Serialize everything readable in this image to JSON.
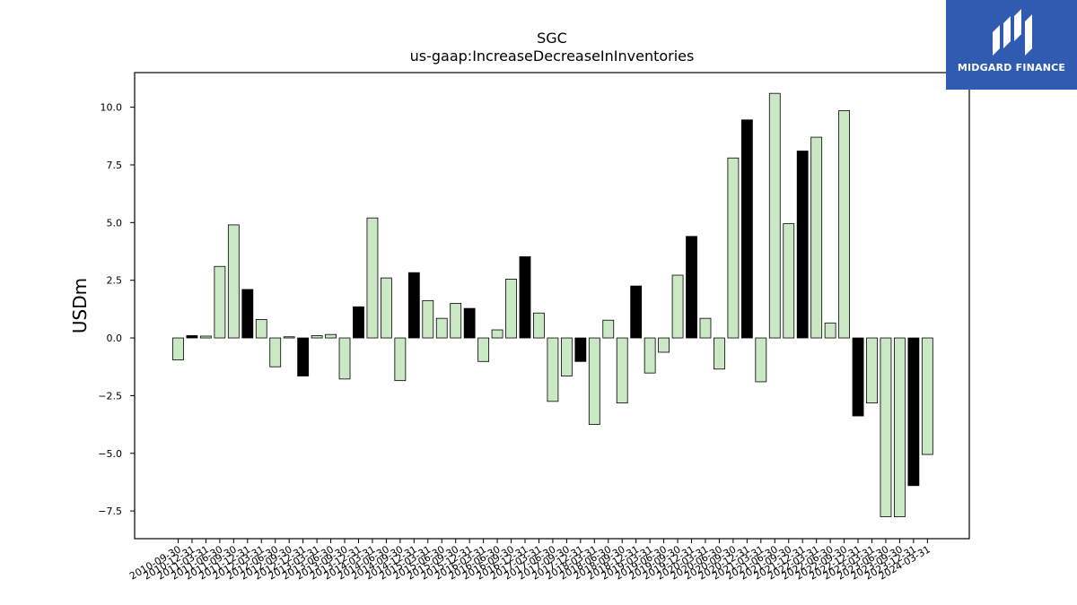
{
  "logo": {
    "text": "MIDGARD FINANCE",
    "bg_color": "#2f5cb0"
  },
  "chart_data": {
    "type": "bar",
    "title": "SGC",
    "subtitle": "us-gaap:IncreaseDecreaseInInventories",
    "ylabel": "USDm",
    "xlabel": "",
    "ylim": [
      -8.7,
      11.5
    ],
    "yticks": [
      -7.5,
      -5.0,
      -2.5,
      0.0,
      2.5,
      5.0,
      7.5,
      10.0
    ],
    "ytick_labels": [
      "−7.5",
      "−5.0",
      "−2.5",
      "0.0",
      "2.5",
      "5.0",
      "7.5",
      "10.0"
    ],
    "grid": false,
    "colors": {
      "default": "#c9e8c3",
      "highlight": "#000000",
      "edge": "#000000"
    },
    "categories": [
      "2010-09-30",
      "2010-12-31",
      "2011-03-31",
      "2011-06-30",
      "2011-09-30",
      "2011-12-31",
      "2012-03-31",
      "2012-06-30",
      "2012-09-30",
      "2012-12-31",
      "2013-03-31",
      "2013-06-30",
      "2013-09-30",
      "2013-12-31",
      "2014-03-31",
      "2014-06-30",
      "2014-09-30",
      "2014-12-31",
      "2015-03-31",
      "2015-06-30",
      "2015-09-30",
      "2015-12-31",
      "2016-03-31",
      "2016-06-30",
      "2016-09-30",
      "2016-12-31",
      "2017-03-31",
      "2017-06-30",
      "2017-09-30",
      "2017-12-31",
      "2018-03-31",
      "2018-06-30",
      "2018-09-30",
      "2018-12-31",
      "2019-03-31",
      "2019-06-30",
      "2019-09-30",
      "2019-12-31",
      "2020-03-31",
      "2020-06-30",
      "2020-09-30",
      "2020-12-31",
      "2021-03-31",
      "2021-06-30",
      "2021-09-30",
      "2021-12-31",
      "2022-03-31",
      "2022-06-30",
      "2022-09-30",
      "2022-12-31",
      "2023-03-31",
      "2023-06-30",
      "2023-09-30",
      "2023-12-31",
      "2024-03-31"
    ],
    "values": [
      -0.95,
      0.1,
      0.08,
      3.1,
      4.9,
      2.1,
      0.8,
      -1.25,
      0.05,
      -1.65,
      0.1,
      0.15,
      -1.78,
      1.35,
      5.2,
      2.6,
      -1.85,
      2.83,
      1.62,
      0.85,
      1.5,
      1.28,
      -1.02,
      0.35,
      2.55,
      3.52,
      1.08,
      -2.75,
      -1.65,
      -1.02,
      -3.75,
      0.77,
      -2.82,
      2.25,
      -1.52,
      -0.62,
      2.72,
      4.4,
      0.85,
      -1.35,
      7.8,
      9.45,
      -1.9,
      10.6,
      4.95,
      8.1,
      8.7,
      0.65,
      9.85,
      -3.38,
      -2.82,
      -7.75,
      -7.75,
      -6.4,
      -5.05
    ],
    "highlight": [
      false,
      true,
      false,
      false,
      false,
      true,
      false,
      false,
      false,
      true,
      false,
      false,
      false,
      true,
      false,
      false,
      false,
      true,
      false,
      false,
      false,
      true,
      false,
      false,
      false,
      true,
      false,
      false,
      false,
      true,
      false,
      false,
      false,
      true,
      false,
      false,
      false,
      true,
      false,
      false,
      false,
      true,
      false,
      false,
      false,
      true,
      false,
      false,
      false,
      true,
      false,
      false,
      false,
      true,
      false
    ]
  }
}
